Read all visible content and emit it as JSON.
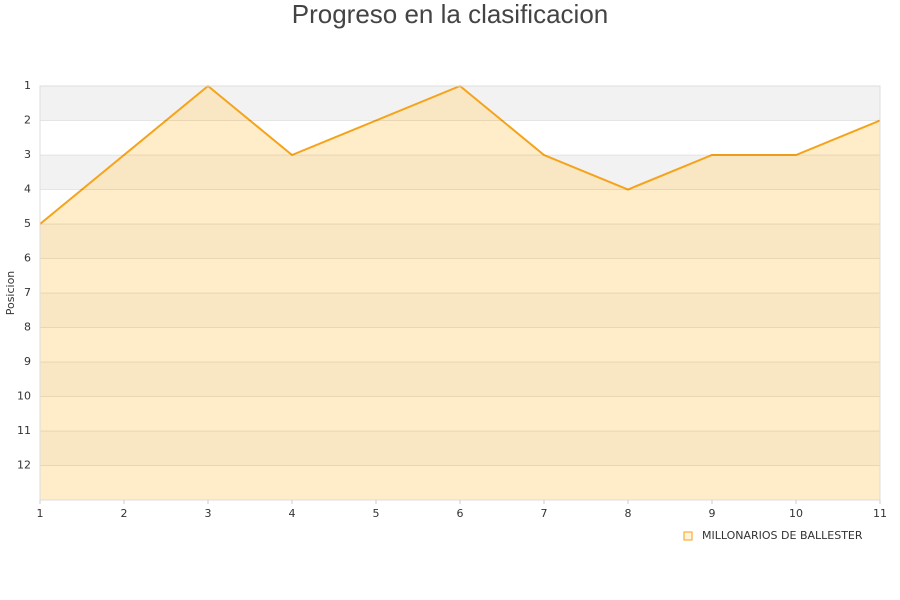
{
  "chart_data": {
    "type": "area",
    "title": "Progreso en la clasificacion",
    "y_label": "Posicion",
    "x": [
      1,
      2,
      3,
      4,
      5,
      6,
      7,
      8,
      9,
      10,
      11
    ],
    "series": [
      {
        "name": "MILLONARIOS DE BALLESTER",
        "color": "#f5a31a",
        "values": [
          5,
          3,
          1,
          3,
          2,
          1,
          3,
          4,
          3,
          3,
          2
        ]
      }
    ],
    "xlim": [
      1,
      11
    ],
    "xticks": [
      1,
      2,
      3,
      4,
      5,
      6,
      7,
      8,
      9,
      10,
      11
    ],
    "ylim": [
      1,
      13
    ],
    "yticks": [
      1,
      2,
      3,
      4,
      5,
      6,
      7,
      8,
      9,
      10,
      11,
      12
    ],
    "y_inverted": true,
    "grid": true,
    "legend": "bottom-right"
  }
}
